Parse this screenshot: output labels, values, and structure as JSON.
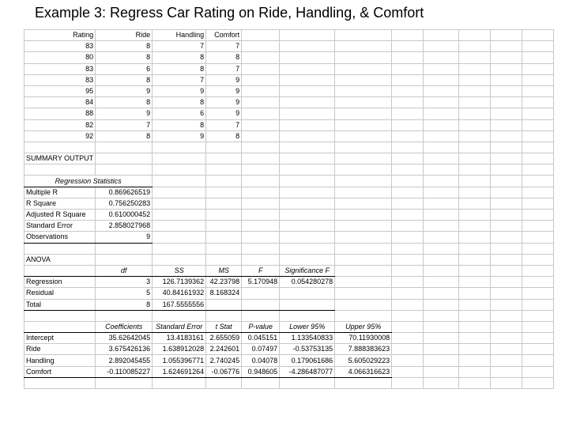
{
  "title": "Example 3: Regress Car Rating on Ride, Handling, & Comfort",
  "data_table": {
    "headers": [
      "Rating",
      "Ride",
      "Handling",
      "Comfort"
    ],
    "rows": [
      [
        "83",
        "8",
        "7",
        "7"
      ],
      [
        "80",
        "8",
        "8",
        "8"
      ],
      [
        "83",
        "6",
        "8",
        "7"
      ],
      [
        "83",
        "8",
        "7",
        "9"
      ],
      [
        "95",
        "9",
        "9",
        "9"
      ],
      [
        "84",
        "8",
        "8",
        "9"
      ],
      [
        "88",
        "9",
        "6",
        "9"
      ],
      [
        "82",
        "7",
        "8",
        "7"
      ],
      [
        "92",
        "8",
        "9",
        "8"
      ]
    ]
  },
  "summary_output_label": "SUMMARY OUTPUT",
  "regression_statistics": {
    "heading": "Regression Statistics",
    "rows": [
      [
        "Multiple R",
        "0.869626519"
      ],
      [
        "R Square",
        "0.756250283"
      ],
      [
        "Adjusted R Square",
        "0.610000452"
      ],
      [
        "Standard Error",
        "2.858027968"
      ],
      [
        "Observations",
        "9"
      ]
    ]
  },
  "anova": {
    "label": "ANOVA",
    "headers": [
      "",
      "df",
      "SS",
      "MS",
      "F",
      "Significance F"
    ],
    "rows": [
      [
        "Regression",
        "3",
        "126.7139362",
        "42.23798",
        "5.170948",
        "0.054280278"
      ],
      [
        "Residual",
        "5",
        "40.84161932",
        "8.168324",
        "",
        ""
      ],
      [
        "Total",
        "8",
        "167.5555556",
        "",
        "",
        ""
      ]
    ]
  },
  "coefficients": {
    "headers": [
      "",
      "Coefficients",
      "Standard Error",
      "t Stat",
      "P-value",
      "Lower 95%",
      "Upper 95%"
    ],
    "rows": [
      [
        "Intercept",
        "35.62642045",
        "13.4183161",
        "2.655059",
        "0.045151",
        "1.133540833",
        "70.11930008"
      ],
      [
        "Ride",
        "3.675426136",
        "1.638912028",
        "2.242601",
        "0.07497",
        "-0.53753135",
        "7.888383623"
      ],
      [
        "Handling",
        "2.892045455",
        "1.055396771",
        "2.740245",
        "0.04078",
        "0.179061686",
        "5.605029223"
      ],
      [
        "Comfort",
        "-0.110085227",
        "1.624691264",
        "-0.06776",
        "0.948605",
        "-4.286487077",
        "4.066316623"
      ]
    ]
  }
}
